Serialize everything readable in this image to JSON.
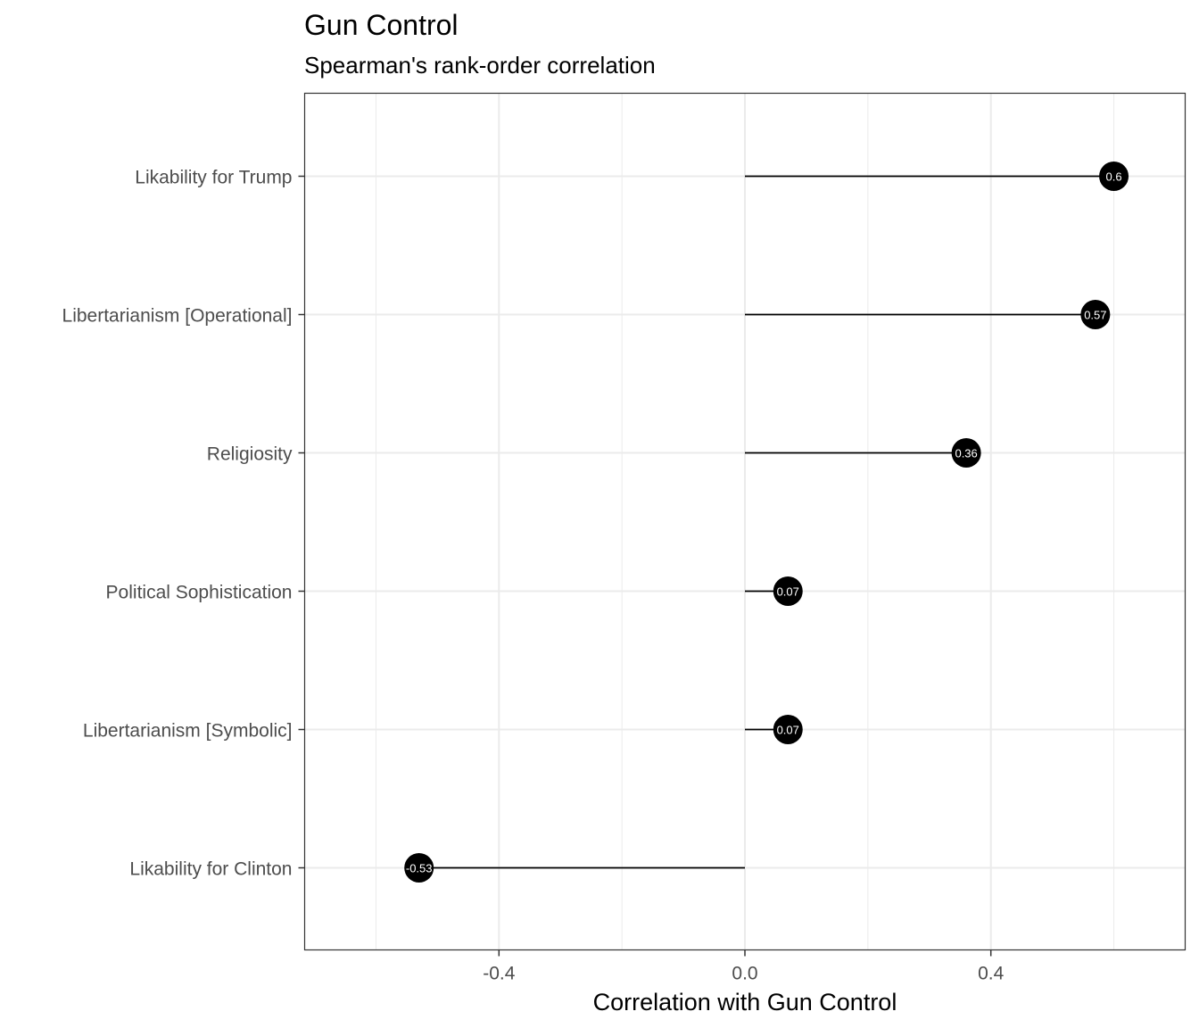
{
  "chart_data": {
    "type": "lollipop",
    "title": "Gun Control",
    "subtitle": "Spearman's rank-order correlation",
    "xlabel": "Correlation with Gun Control",
    "ylabel": "",
    "xlim": [
      -0.716,
      0.716
    ],
    "x_ticks": [
      -0.4,
      0.0,
      0.4
    ],
    "x_tick_labels": [
      "-0.4",
      "0.0",
      "0.4"
    ],
    "categories": [
      "Likability for Trump",
      "Libertarianism [Operational]",
      "Religiosity",
      "Political Sophistication",
      "Libertarianism [Symbolic]",
      "Likability for Clinton"
    ],
    "values": [
      0.6,
      0.57,
      0.36,
      0.07,
      0.07,
      -0.53
    ],
    "value_labels": [
      "0.6",
      "0.57",
      "0.36",
      "0.07",
      "0.07",
      "-0.53"
    ],
    "grid": true,
    "legend": "none",
    "colors": {
      "point": "#000000",
      "segment": "#000000",
      "label": "#ffffff",
      "grid": "#ebebeb",
      "panel_border": "#333333"
    }
  }
}
